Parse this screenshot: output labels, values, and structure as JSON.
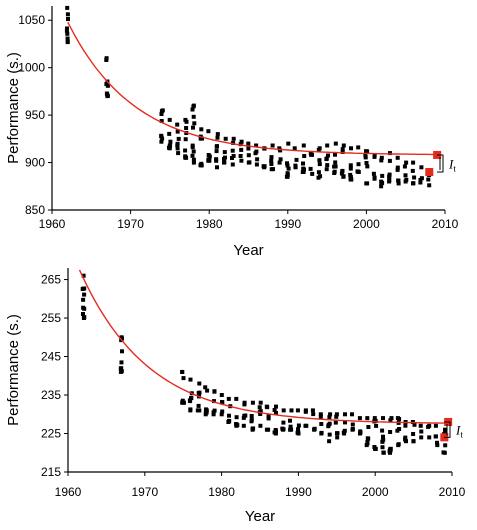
{
  "chart_data": [
    {
      "type": "scatter",
      "xlabel": "Year",
      "ylabel": "Performance (s.)",
      "xlim": [
        1960,
        2010
      ],
      "ylim": [
        850,
        1065
      ],
      "xticks": [
        1960,
        1970,
        1980,
        1990,
        2000,
        2010
      ],
      "yticks": [
        850,
        900,
        950,
        1000,
        1050
      ],
      "fit_curve": {
        "asymptote": 908,
        "amplitude": 140,
        "x0": 1962,
        "tau": 8.5,
        "color": "#e62b1e",
        "x_end": 2009
      },
      "markers": [
        {
          "x": 2009,
          "y": 908
        },
        {
          "x": 2008,
          "y": 890
        }
      ],
      "annotation": {
        "symbol": "I",
        "subscript": "t"
      },
      "years": [
        1962,
        1967,
        1974,
        1975,
        1976,
        1977,
        1978,
        1979,
        1980,
        1981,
        1982,
        1983,
        1984,
        1985,
        1986,
        1987,
        1988,
        1989,
        1990,
        1991,
        1992,
        1993,
        1994,
        1995,
        1996,
        1997,
        1998,
        1999,
        2000,
        2001,
        2002,
        2003,
        2004,
        2005,
        2006,
        2007,
        2008
      ],
      "lo": [
        1027,
        970,
        922,
        915,
        910,
        905,
        900,
        897,
        902,
        895,
        900,
        898,
        902,
        900,
        898,
        895,
        893,
        900,
        885,
        895,
        890,
        888,
        884,
        893,
        889,
        885,
        882,
        890,
        878,
        883,
        875,
        880,
        878,
        880,
        878,
        879,
        876
      ],
      "hi": [
        1063,
        1010,
        955,
        945,
        940,
        945,
        960,
        935,
        933,
        930,
        925,
        925,
        922,
        920,
        918,
        915,
        918,
        915,
        920,
        915,
        918,
        910,
        915,
        918,
        920,
        918,
        915,
        916,
        912,
        908,
        905,
        910,
        905,
        900,
        900,
        895,
        892
      ],
      "color": "#000000"
    },
    {
      "type": "scatter",
      "xlabel": "Year",
      "ylabel": "Performance (s.)",
      "xlim": [
        1960,
        2010
      ],
      "ylim": [
        215,
        268
      ],
      "xticks": [
        1960,
        1970,
        1980,
        1990,
        2000,
        2010
      ],
      "yticks": [
        215,
        225,
        235,
        245,
        255,
        265
      ],
      "fit_curve": {
        "asymptote": 227.5,
        "amplitude": 40,
        "x0": 1961.5,
        "tau": 9,
        "color": "#e62b1e",
        "x_end": 2009.5
      },
      "markers": [
        {
          "x": 2009.5,
          "y": 228
        },
        {
          "x": 2009,
          "y": 224
        }
      ],
      "annotation": {
        "symbol": "I",
        "subscript": "t"
      },
      "years": [
        1962,
        1967,
        1975,
        1976,
        1977,
        1978,
        1979,
        1980,
        1981,
        1982,
        1983,
        1984,
        1985,
        1986,
        1987,
        1988,
        1989,
        1990,
        1991,
        1992,
        1993,
        1994,
        1995,
        1996,
        1997,
        1998,
        1999,
        2000,
        2001,
        2002,
        2003,
        2004,
        2005,
        2006,
        2007,
        2008,
        2009
      ],
      "lo": [
        255,
        241,
        233,
        231,
        231,
        230,
        230,
        230,
        228,
        227,
        227,
        226,
        227,
        226,
        225,
        226,
        226,
        225,
        227,
        226,
        225,
        223,
        224,
        225,
        226,
        225,
        222,
        221,
        220,
        220,
        222,
        223,
        223,
        224,
        224,
        222,
        220
      ],
      "hi": [
        266,
        250,
        241,
        239,
        238,
        237,
        236,
        235,
        234,
        234,
        233,
        233,
        233,
        232,
        232,
        231,
        231,
        231,
        231,
        231,
        230,
        230,
        230,
        230,
        230,
        229,
        229,
        229,
        229,
        229,
        229,
        228,
        228,
        227,
        227,
        227,
        226
      ],
      "color": "#000000"
    }
  ]
}
